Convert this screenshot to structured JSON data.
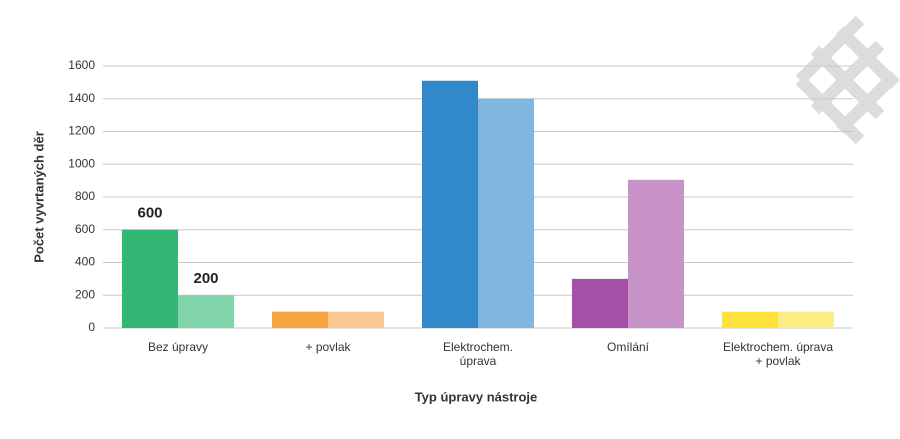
{
  "chart_data": {
    "type": "bar",
    "y_label": "Počet vyvrtaných děr",
    "x_label": "Typ úpravy nástroje",
    "categories": [
      "Bez úpravy",
      "+ povlak",
      "Elektrochem.\núprava",
      "Omílání",
      "Elektrochem. úprava\n+ povlak"
    ],
    "series": [
      {
        "values": [
          600,
          100,
          1510,
          300,
          100
        ],
        "colors": [
          "#33b673",
          "#f7a540",
          "#3189ca",
          "#a54fa7",
          "#fde23c"
        ],
        "value_labels": [
          "600",
          null,
          null,
          null,
          null
        ]
      },
      {
        "values": [
          200,
          100,
          1400,
          905,
          100
        ],
        "colors": [
          "#82d5aa",
          "#f9c890",
          "#80b7e0",
          "#c893c8",
          "#fdec82"
        ],
        "value_labels": [
          "200",
          null,
          null,
          null,
          null
        ]
      }
    ],
    "ylim": [
      0,
      1600
    ],
    "yticks": [
      0,
      200,
      400,
      600,
      800,
      1000,
      1200,
      1400,
      1600
    ],
    "grid": true
  }
}
